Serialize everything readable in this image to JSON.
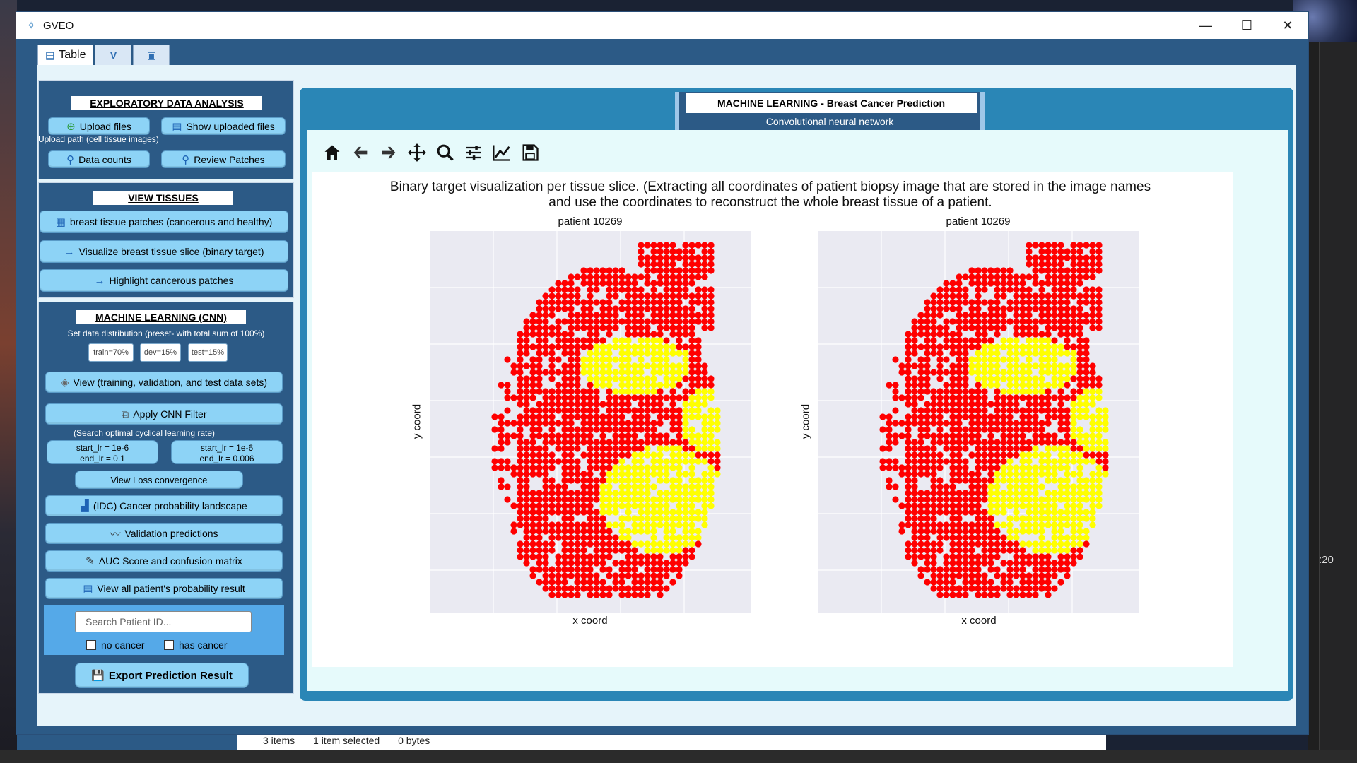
{
  "window": {
    "title": "GVEO",
    "controls": {
      "minimize": "—",
      "maximize": "☐",
      "close": "✕"
    }
  },
  "tabs": [
    {
      "label": "Table",
      "icon": "document-icon"
    },
    {
      "label": "",
      "icon": "v-logo-icon"
    },
    {
      "label": "",
      "icon": "folder-image-icon"
    }
  ],
  "eda": {
    "title": "EXPLORATORY DATA ANALYSIS",
    "upload_label": "Upload files",
    "show_uploaded_label": "Show uploaded files",
    "upload_path_note": "Upload path (cell tissue images)",
    "data_counts_label": "Data counts",
    "review_patches_label": "Review Patches"
  },
  "view_tissues": {
    "title": "VIEW TISSUES",
    "patches_label": "breast tissue patches (cancerous and healthy)",
    "visualize_label": "Visualize  breast tissue slice (binary target)",
    "highlight_label": "Highlight cancerous patches"
  },
  "ml": {
    "title": "MACHINE LEARNING (CNN)",
    "distribution_note": "Set data distribution (preset- with total sum of 100%)",
    "train": "train=70%",
    "dev": "dev=15%",
    "test": "test=15%",
    "view_sets_label": "View (training, validation, and  test data sets)",
    "apply_cnn_label": "Apply CNN Filter",
    "lr_note": "(Search optimal cyclical learning rate)",
    "lr1_line1": "start_lr = 1e-6",
    "lr1_line2": "end_lr = 0.1",
    "lr2_line1": "start_lr = 1e-6",
    "lr2_line2": "end_lr = 0.006",
    "loss_label": "View Loss convergence",
    "landscape_label": "(IDC) Cancer probability landscape",
    "validation_label": "Validation predictions",
    "auc_label": "AUC Score and confusion matrix",
    "view_all_label": "View all patient's probability result",
    "search_placeholder": "Search Patient ID...",
    "no_cancer_label": "no cancer",
    "has_cancer_label": "has cancer",
    "export_label": "Export Prediction Result"
  },
  "panel": {
    "title": "MACHINE LEARNING  - Breast Cancer Prediction",
    "subtitle": "Convolutional neural network"
  },
  "toolbar": [
    "home-icon",
    "back-arrow-icon",
    "forward-arrow-icon",
    "pan-icon",
    "zoom-icon",
    "configure-subplots-icon",
    "edit-axis-icon",
    "save-icon"
  ],
  "plot": {
    "caption_line1": "Binary target visualization per tissue slice. (Extracting all coordinates of patient biopsy image that are stored in the image names",
    "caption_line2": "and use the coordinates to reconstruct the whole breast tissue of a patient."
  },
  "chart_data": [
    {
      "type": "scatter",
      "title": "patient 10269",
      "xlabel": "x coord",
      "ylabel": "y coord",
      "grid": true,
      "background": "#eaeaf2",
      "colors": {
        "healthy": "#ff0000",
        "cancer": "#ffff00"
      },
      "series": [
        {
          "name": "",
          "color": "#ff0000"
        },
        {
          "name": "",
          "color": "#ffff00"
        }
      ]
    },
    {
      "type": "scatter",
      "title": "patient 10269",
      "xlabel": "x coord",
      "ylabel": "y coord",
      "grid": true,
      "background": "#eaeaf2",
      "colors": {
        "healthy": "#ff0000",
        "cancer": "#ffff00"
      },
      "series": [
        {
          "name": "",
          "color": "#ff0000"
        },
        {
          "name": "",
          "color": "#ffff00"
        }
      ]
    }
  ],
  "background": {
    "status_items": "3 items",
    "status_selected": "1 item selected",
    "status_bytes": "0 bytes",
    "right_side_num": ":20"
  }
}
